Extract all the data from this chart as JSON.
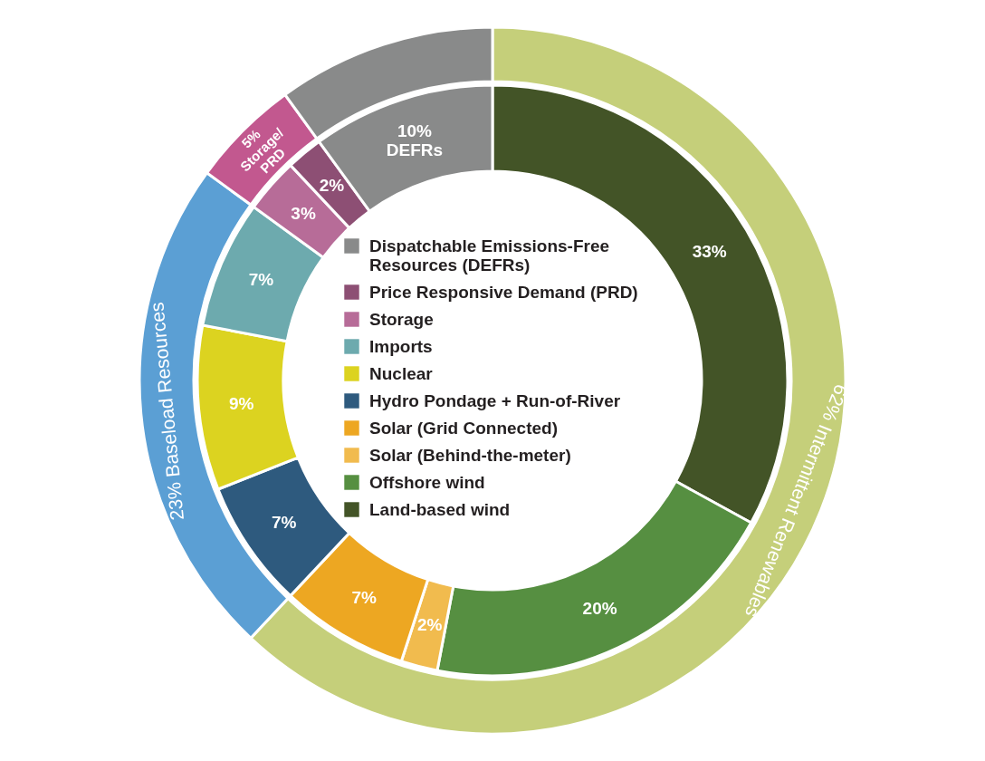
{
  "chart_data": {
    "type": "donut",
    "legend": "center",
    "categories": [
      "Land-based wind",
      "Offshore wind",
      "Solar (Behind-the-meter)",
      "Solar (Grid Connected)",
      "Hydro Pondage + Run-of-River",
      "Nuclear",
      "Imports",
      "Storage",
      "Price Responsive Demand (PRD)",
      "Dispatchable Emissions-Free Resources (DEFRs)"
    ],
    "series": [
      {
        "values": [
          33,
          20,
          2,
          7,
          7,
          9,
          7,
          3,
          2,
          10
        ],
        "colors": [
          "#435427",
          "#568f41",
          "#f1bb4e",
          "#eda722",
          "#2e5a7e",
          "#dcd320",
          "#6daaae",
          "#b76c98",
          "#8d4f74",
          "#898a8a"
        ],
        "value_labels": [
          "33%",
          "20%",
          "2%",
          "7%",
          "7%",
          "9%",
          "7%",
          "3%",
          "2%",
          "10% DEFRs"
        ]
      },
      {
        "values": [
          62,
          null,
          null,
          null,
          23,
          null,
          null,
          5,
          null,
          10
        ],
        "colors": [
          "#c5cf7a",
          null,
          null,
          null,
          "#5b9fd4",
          null,
          null,
          "#c2588f",
          null,
          "#898a8a"
        ],
        "value_labels": [
          "62% Intermittent Renewables",
          null,
          null,
          null,
          "23% Baseload Resources",
          null,
          null,
          "5% Storage/PRD",
          null,
          null
        ]
      }
    ]
  }
}
